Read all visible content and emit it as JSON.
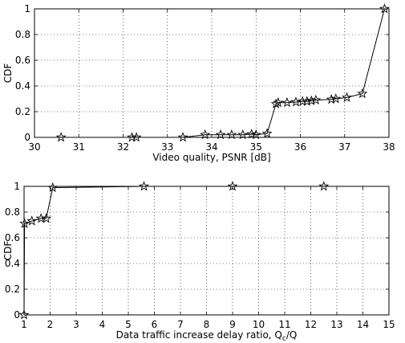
{
  "chart_data": [
    {
      "type": "line",
      "xlabel": "Video quality, PSNR [dB]",
      "ylabel": "CDF",
      "xlim": [
        30,
        38
      ],
      "ylim": [
        0,
        1
      ],
      "xticks": [
        "30",
        "31",
        "32",
        "33",
        "34",
        "35",
        "36",
        "37",
        "38"
      ],
      "yticks": [
        "0",
        "0.2",
        "0.4",
        "0.6",
        "0.8",
        "1"
      ],
      "grid": true,
      "marker": "star",
      "series": [
        {
          "x": [
            30.6,
            32.2,
            32.3,
            33.35,
            33.85,
            34.2,
            34.45,
            34.7,
            34.9,
            35.0,
            35.25,
            35.45,
            35.5,
            35.7,
            35.9,
            36.05,
            36.15,
            36.25,
            36.35,
            36.7,
            36.8,
            37.05,
            37.4,
            37.9
          ],
          "y": [
            0.0,
            0.0,
            0.0,
            0.0,
            0.02,
            0.02,
            0.02,
            0.02,
            0.025,
            0.02,
            0.03,
            0.26,
            0.27,
            0.27,
            0.275,
            0.28,
            0.28,
            0.285,
            0.29,
            0.295,
            0.3,
            0.31,
            0.34,
            1.0
          ]
        }
      ]
    },
    {
      "type": "line",
      "xlabel_main": "Data traffic increase delay ratio, Q",
      "xlabel_sub": "c",
      "xlabel_tail": "/Q",
      "ylabel": "CDF",
      "xlim": [
        1,
        15
      ],
      "ylim": [
        0,
        1
      ],
      "xticks": [
        "1",
        "2",
        "3",
        "4",
        "5",
        "6",
        "7",
        "8",
        "9",
        "10",
        "11",
        "12",
        "13",
        "14",
        "15"
      ],
      "yticks": [
        "0",
        "0.2",
        "0.4",
        "0.6",
        "0.8",
        "1"
      ],
      "grid": true,
      "marker": "star",
      "series": [
        {
          "x": [
            1.0,
            1.02,
            1.3,
            1.65,
            1.85,
            2.1,
            5.6,
            9.0,
            12.5
          ],
          "y": [
            0.0,
            0.71,
            0.73,
            0.75,
            0.75,
            0.99,
            1.0,
            1.0,
            1.0
          ]
        }
      ]
    }
  ]
}
